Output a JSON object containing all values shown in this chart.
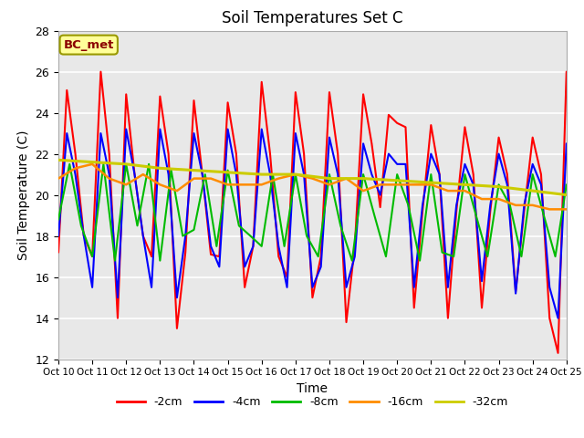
{
  "title": "Soil Temperatures Set C",
  "xlabel": "Time",
  "ylabel": "Soil Temperature (C)",
  "ylim": [
    12,
    28
  ],
  "xlim": [
    0,
    15
  ],
  "annotation_text": "BC_met",
  "annotation_color": "#8B0000",
  "annotation_bg": "#FFFF99",
  "annotation_edge": "#999900",
  "background_color": "#E8E8E8",
  "grid_color": "#FFFFFF",
  "xtick_positions": [
    0,
    1,
    2,
    3,
    4,
    5,
    6,
    7,
    8,
    9,
    10,
    11,
    12,
    13,
    14,
    15
  ],
  "xtick_labels": [
    "Oct 10",
    "Oct 11",
    "Oct 12",
    "Oct 13",
    "Oct 14",
    "Oct 15",
    "Oct 16",
    "Oct 17",
    "Oct 18",
    "Oct 19",
    "Oct 20",
    "Oct 21",
    "Oct 22",
    "Oct 23",
    "Oct 24",
    "Oct 25"
  ],
  "ytick_positions": [
    12,
    14,
    16,
    18,
    20,
    22,
    24,
    26,
    28
  ],
  "legend_entries": [
    "-2cm",
    "-4cm",
    "-8cm",
    "-16cm",
    "-32cm"
  ],
  "legend_colors": [
    "#FF0000",
    "#0000FF",
    "#00BB00",
    "#FF8C00",
    "#CCCC00"
  ],
  "series": {
    "-2cm": {
      "color": "#FF0000",
      "linewidth": 1.5,
      "x": [
        0.0,
        0.25,
        0.5,
        0.75,
        1.0,
        1.25,
        1.5,
        1.75,
        2.0,
        2.25,
        2.5,
        2.75,
        3.0,
        3.25,
        3.5,
        3.75,
        4.0,
        4.25,
        4.5,
        4.75,
        5.0,
        5.25,
        5.5,
        5.75,
        6.0,
        6.25,
        6.5,
        6.75,
        7.0,
        7.25,
        7.5,
        7.75,
        8.0,
        8.25,
        8.5,
        8.75,
        9.0,
        9.25,
        9.5,
        9.75,
        10.0,
        10.25,
        10.5,
        10.75,
        11.0,
        11.25,
        11.5,
        11.75,
        12.0,
        12.25,
        12.5,
        12.75,
        13.0,
        13.25,
        13.5,
        13.75,
        14.0,
        14.25,
        14.5,
        14.75,
        15.0
      ],
      "y": [
        17.2,
        25.1,
        22.0,
        18.0,
        17.0,
        26.0,
        22.0,
        14.0,
        24.9,
        21.0,
        18.0,
        17.0,
        24.8,
        22.0,
        13.5,
        17.2,
        24.6,
        21.0,
        17.1,
        17.0,
        24.5,
        22.0,
        15.5,
        17.5,
        25.5,
        22.0,
        17.0,
        16.0,
        25.0,
        22.0,
        15.0,
        17.0,
        25.0,
        22.0,
        13.8,
        17.5,
        24.9,
        22.5,
        19.4,
        23.9,
        23.5,
        23.3,
        14.5,
        19.2,
        23.4,
        21.0,
        14.0,
        19.2,
        23.3,
        21.0,
        14.5,
        19.2,
        22.8,
        21.0,
        15.3,
        19.2,
        22.8,
        21.0,
        14.0,
        12.3,
        26.0
      ]
    },
    "-4cm": {
      "color": "#0000FF",
      "linewidth": 1.5,
      "x": [
        0.0,
        0.25,
        0.5,
        0.75,
        1.0,
        1.25,
        1.5,
        1.75,
        2.0,
        2.25,
        2.5,
        2.75,
        3.0,
        3.25,
        3.5,
        3.75,
        4.0,
        4.25,
        4.5,
        4.75,
        5.0,
        5.25,
        5.5,
        5.75,
        6.0,
        6.25,
        6.5,
        6.75,
        7.0,
        7.25,
        7.5,
        7.75,
        8.0,
        8.25,
        8.5,
        8.75,
        9.0,
        9.25,
        9.5,
        9.75,
        10.0,
        10.25,
        10.5,
        10.75,
        11.0,
        11.25,
        11.5,
        11.75,
        12.0,
        12.25,
        12.5,
        12.75,
        13.0,
        13.25,
        13.5,
        13.75,
        14.0,
        14.25,
        14.5,
        14.75,
        15.0
      ],
      "y": [
        18.0,
        23.0,
        21.0,
        18.0,
        15.5,
        23.0,
        21.0,
        15.0,
        23.2,
        21.0,
        18.0,
        15.5,
        23.2,
        21.0,
        15.0,
        18.0,
        23.0,
        21.0,
        17.5,
        16.5,
        23.2,
        21.0,
        16.5,
        17.5,
        23.2,
        21.0,
        17.5,
        15.5,
        23.0,
        21.0,
        15.5,
        16.5,
        22.8,
        21.0,
        15.5,
        17.0,
        22.5,
        21.0,
        20.0,
        22.0,
        21.5,
        21.5,
        15.5,
        19.5,
        22.0,
        21.0,
        15.5,
        19.5,
        21.5,
        20.5,
        15.8,
        19.5,
        22.0,
        20.5,
        15.2,
        19.5,
        21.5,
        20.5,
        15.5,
        14.0,
        22.5
      ]
    },
    "-8cm": {
      "color": "#00BB00",
      "linewidth": 1.5,
      "x": [
        0.0,
        0.33,
        0.67,
        1.0,
        1.33,
        1.67,
        2.0,
        2.33,
        2.67,
        3.0,
        3.33,
        3.67,
        4.0,
        4.33,
        4.67,
        5.0,
        5.33,
        5.67,
        6.0,
        6.33,
        6.67,
        7.0,
        7.33,
        7.67,
        8.0,
        8.33,
        8.67,
        9.0,
        9.33,
        9.67,
        10.0,
        10.33,
        10.67,
        11.0,
        11.33,
        11.67,
        12.0,
        12.33,
        12.67,
        13.0,
        13.33,
        13.67,
        14.0,
        14.33,
        14.67,
        15.0
      ],
      "y": [
        18.8,
        21.5,
        18.5,
        17.0,
        21.5,
        16.8,
        21.5,
        18.5,
        21.5,
        16.8,
        21.2,
        18.0,
        18.3,
        21.0,
        17.5,
        21.2,
        18.5,
        18.0,
        17.5,
        21.0,
        17.5,
        21.0,
        18.0,
        17.0,
        21.0,
        18.5,
        16.8,
        21.0,
        19.0,
        17.0,
        21.0,
        19.5,
        16.8,
        21.0,
        17.2,
        17.0,
        21.0,
        19.0,
        17.0,
        20.5,
        19.5,
        17.0,
        21.0,
        19.0,
        17.0,
        20.5
      ]
    },
    "-16cm": {
      "color": "#FF8C00",
      "linewidth": 1.8,
      "x": [
        0.0,
        0.5,
        1.0,
        1.5,
        2.0,
        2.5,
        3.0,
        3.5,
        4.0,
        4.5,
        5.0,
        5.5,
        6.0,
        6.5,
        7.0,
        7.5,
        8.0,
        8.5,
        9.0,
        9.5,
        10.0,
        10.5,
        11.0,
        11.5,
        12.0,
        12.5,
        13.0,
        13.5,
        14.0,
        14.5,
        15.0
      ],
      "y": [
        20.8,
        21.3,
        21.5,
        20.8,
        20.5,
        21.0,
        20.5,
        20.2,
        20.8,
        20.8,
        20.5,
        20.5,
        20.5,
        20.8,
        21.0,
        20.8,
        20.5,
        20.8,
        20.2,
        20.5,
        20.5,
        20.5,
        20.5,
        20.2,
        20.2,
        19.8,
        19.8,
        19.5,
        19.5,
        19.3,
        19.3
      ]
    },
    "-32cm": {
      "color": "#CCCC00",
      "linewidth": 2.2,
      "x": [
        0.0,
        1.0,
        2.0,
        3.0,
        4.0,
        5.0,
        6.0,
        7.0,
        8.0,
        9.0,
        10.0,
        11.0,
        12.0,
        13.0,
        14.0,
        15.0
      ],
      "y": [
        21.7,
        21.6,
        21.5,
        21.3,
        21.2,
        21.1,
        21.0,
        21.0,
        20.8,
        20.8,
        20.7,
        20.6,
        20.5,
        20.4,
        20.2,
        20.0
      ]
    }
  }
}
